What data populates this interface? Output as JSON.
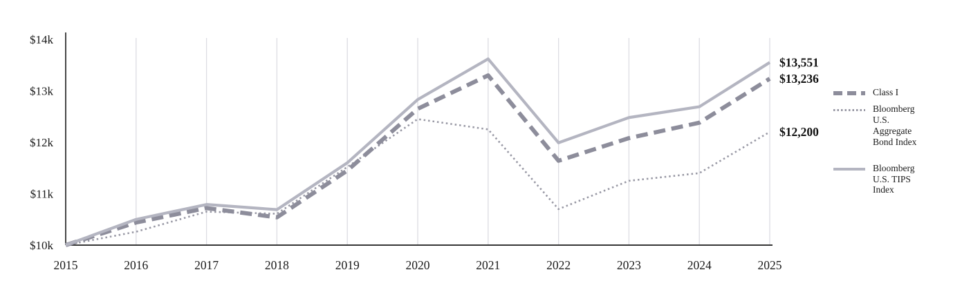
{
  "chart_data": {
    "type": "line",
    "x": [
      2015,
      2016,
      2017,
      2018,
      2019,
      2020,
      2021,
      2022,
      2023,
      2024,
      2025
    ],
    "series": [
      {
        "name": "Bloomberg U.S. Aggregate Bond Index",
        "style": "dotted",
        "color": "#9898a4",
        "values": [
          10000,
          10260,
          10650,
          10610,
          11520,
          12450,
          12250,
          10700,
          11250,
          11400,
          12200
        ],
        "end_label": "$12,200"
      },
      {
        "name": "Class I",
        "style": "dashed",
        "color": "#8d8d9b",
        "values": [
          10000,
          10440,
          10720,
          10540,
          11450,
          12650,
          13300,
          11640,
          12080,
          12380,
          13236
        ],
        "end_label": "$13,236"
      },
      {
        "name": "Bloomberg U.S. TIPS Index",
        "style": "solid",
        "color": "#b4b5c1",
        "values": [
          10000,
          10500,
          10790,
          10690,
          11600,
          12830,
          13620,
          11990,
          12480,
          12690,
          13551
        ],
        "end_label": "$13,551"
      }
    ],
    "ylim": [
      10000,
      14000
    ],
    "yticks": [
      10000,
      11000,
      12000,
      13000,
      14000
    ],
    "ytick_labels": [
      "$10k",
      "$11k",
      "$12k",
      "$13k",
      "$14k"
    ],
    "xtick_labels": [
      "2015",
      "2016",
      "2017",
      "2018",
      "2019",
      "2020",
      "2021",
      "2022",
      "2023",
      "2024",
      "2025"
    ],
    "grid": "vertical",
    "legend_position": "right",
    "title": "",
    "xlabel": "",
    "ylabel": ""
  },
  "colors": {
    "gridline": "#dcdce2",
    "axis": "#1a1a1a",
    "label_text": "#1a1a1a"
  },
  "legend": {
    "items": [
      {
        "label": "Class I",
        "series": "Class I"
      },
      {
        "label": "Bloomberg\nU.S.\nAggregate\nBond Index",
        "series": "Bloomberg U.S. Aggregate Bond Index"
      },
      {
        "label": "Bloomberg\nU.S. TIPS\nIndex",
        "series": "Bloomberg U.S. TIPS Index"
      }
    ]
  }
}
